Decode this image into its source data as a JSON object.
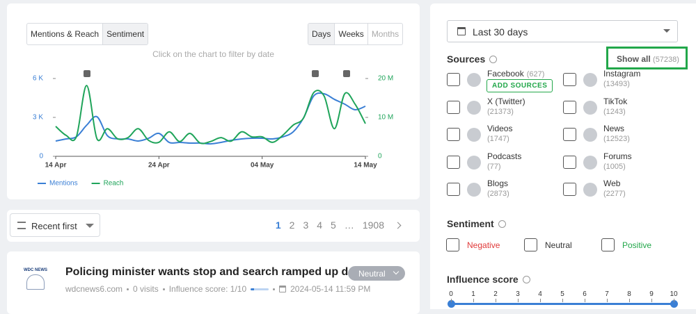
{
  "chart_panel": {
    "toggle": [
      "Mentions & Reach",
      "Sentiment"
    ],
    "periods": [
      "Days",
      "Weeks",
      "Months"
    ],
    "hint": "Click on the chart to filter by date"
  },
  "chart_data": {
    "type": "line",
    "categories": [
      "14 Apr",
      null,
      null,
      null,
      null,
      null,
      null,
      null,
      null,
      null,
      "24 Apr",
      null,
      null,
      null,
      null,
      null,
      null,
      null,
      null,
      null,
      "04 May",
      null,
      null,
      null,
      null,
      null,
      null,
      null,
      null,
      null,
      "14 May"
    ],
    "series": [
      {
        "name": "Mentions",
        "color": "#3a7fd5",
        "values": [
          1180,
          1340,
          1500,
          2400,
          3050,
          1600,
          1340,
          1340,
          1180,
          1390,
          1770,
          1070,
          1070,
          1020,
          1020,
          960,
          1070,
          1230,
          1340,
          1390,
          1390,
          1340,
          1500,
          1880,
          2950,
          4660,
          4820,
          4390,
          4020,
          3590,
          3860
        ]
      },
      {
        "name": "Reach",
        "color": "#1fa45a",
        "axis": "y2",
        "values": [
          7700000,
          5400000,
          5000000,
          18200000,
          4500000,
          7100000,
          4500000,
          4800000,
          7100000,
          4100000,
          3600000,
          6300000,
          3800000,
          5900000,
          3400000,
          3800000,
          4800000,
          3900000,
          6300000,
          5000000,
          5000000,
          3600000,
          5400000,
          8000000,
          9800000,
          16400000,
          15500000,
          7100000,
          16100000,
          13400000,
          8400000
        ]
      }
    ],
    "ylim": [
      0,
      6000
    ],
    "yticks": [
      0,
      {
        "value": 3000,
        "label": "3 K"
      },
      {
        "value": 6000,
        "label": "6 K"
      }
    ],
    "y2lim": [
      0,
      20000000
    ],
    "y2ticks": [
      0,
      {
        "value": 10000000,
        "label": "10 M"
      },
      {
        "value": 20000000,
        "label": "20 M"
      }
    ],
    "legend": "bottom-left"
  },
  "list_controls": {
    "sort": "Recent first",
    "pages": [
      1,
      2,
      3,
      4,
      5,
      "…",
      1908
    ]
  },
  "article": {
    "logo_text": "WDC NEWS",
    "title": "Policing minister wants stop and search ramped up d...",
    "sentiment": "Neutral",
    "source": "wdcnews6.com",
    "visits": "0 visits",
    "influence": "Influence score: 1/10",
    "date": "2024-05-14 11:59 PM"
  },
  "filters": {
    "range": "Last 30 days",
    "sources_title": "Sources",
    "show_all": "Show all",
    "show_all_count": "(57238)",
    "add_sources": "ADD SOURCES",
    "sources": [
      {
        "name": "Facebook",
        "count": "(627)"
      },
      {
        "name": "Instagram",
        "count": "(13493)"
      },
      {
        "name": "X (Twitter)",
        "count": "(21373)"
      },
      {
        "name": "TikTok",
        "count": "(1243)"
      },
      {
        "name": "Videos",
        "count": "(1747)"
      },
      {
        "name": "News",
        "count": "(12523)"
      },
      {
        "name": "Podcasts",
        "count": "(77)"
      },
      {
        "name": "Forums",
        "count": "(1005)"
      },
      {
        "name": "Blogs",
        "count": "(2873)"
      },
      {
        "name": "Web",
        "count": "(2277)"
      }
    ],
    "sentiment_title": "Sentiment",
    "sentiments": [
      "Negative",
      "Neutral",
      "Positive"
    ],
    "influence_title": "Influence score",
    "influence_ticks": [
      0,
      1,
      2,
      3,
      4,
      5,
      6,
      7,
      8,
      9,
      10
    ]
  }
}
